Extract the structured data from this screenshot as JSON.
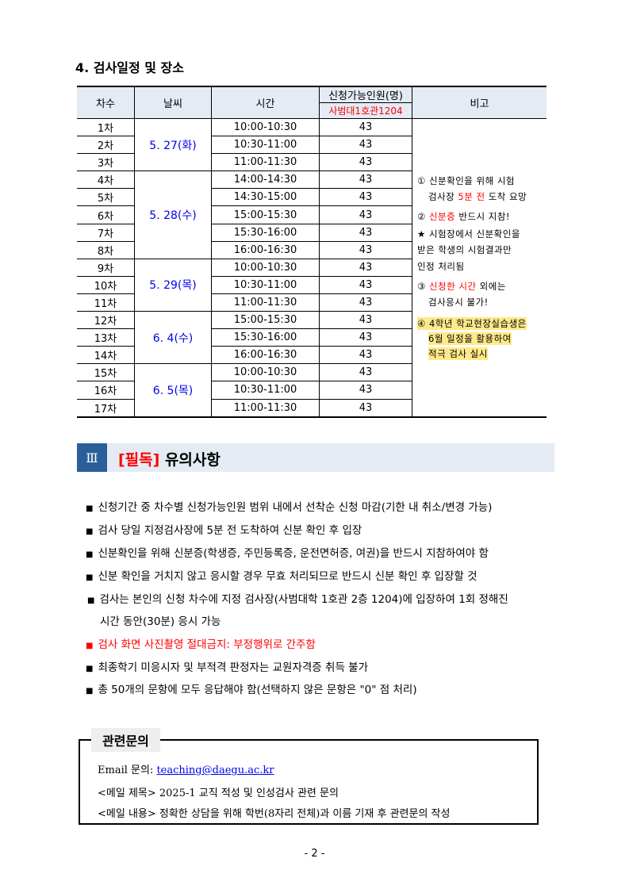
{
  "section4": {
    "title": "4. 검사일정 및 장소"
  },
  "table": {
    "headers": {
      "round": "차수",
      "date": "날씨",
      "time": "시간",
      "capacity": "신청가능인원(명)",
      "location": "사범대1호관1204",
      "remarks": "비고"
    },
    "groups": [
      {
        "date": "5. 27(화)",
        "rows": [
          [
            "1차",
            "10:00-10:30",
            "43"
          ],
          [
            "2차",
            "10:30-11:00",
            "43"
          ],
          [
            "3차",
            "11:00-11:30",
            "43"
          ]
        ]
      },
      {
        "date": "5. 28(수)",
        "rows": [
          [
            "4차",
            "14:00-14:30",
            "43"
          ],
          [
            "5차",
            "14:30-15:00",
            "43"
          ],
          [
            "6차",
            "15:00-15:30",
            "43"
          ],
          [
            "7차",
            "15:30-16:00",
            "43"
          ],
          [
            "8차",
            "16:00-16:30",
            "43"
          ]
        ]
      },
      {
        "date": "5. 29(목)",
        "rows": [
          [
            "9차",
            "10:00-10:30",
            "43"
          ],
          [
            "10차",
            "10:30-11:00",
            "43"
          ],
          [
            "11차",
            "11:00-11:30",
            "43"
          ]
        ]
      },
      {
        "date": "6. 4(수)",
        "rows": [
          [
            "12차",
            "15:00-15:30",
            "43"
          ],
          [
            "13차",
            "15:30-16:00",
            "43"
          ],
          [
            "14차",
            "16:00-16:30",
            "43"
          ]
        ]
      },
      {
        "date": "6. 5(목)",
        "rows": [
          [
            "15차",
            "10:00-10:30",
            "43"
          ],
          [
            "16차",
            "10:30-11:00",
            "43"
          ],
          [
            "17차",
            "11:00-11:30",
            "43"
          ]
        ]
      }
    ],
    "remarks": {
      "r1a": "① 신분확인을 위해 시험",
      "r1b_pre": "검사장 ",
      "r1b_red": "5분 전",
      "r1b_post": " 도착 요망",
      "r2a_pre": "② ",
      "r2a_red": "신분증",
      "r2a_post": " 반드시 지참!",
      "r2b": "★ 시험장에서 신분확인을",
      "r2c": "받은 학생의 시험결과만",
      "r2d": "인정 처리됨",
      "r3a_pre": "③ ",
      "r3a_red": "신청한 시간",
      "r3a_post": " 외에는",
      "r3b": "검사응시 불가!",
      "r4a": "④ 4학년 학교현장실습생은",
      "r4b": "6월 일정을 활용하여",
      "r4c": "적극 검사 실시"
    }
  },
  "section3": {
    "num": "Ⅲ",
    "tag": "[필독]",
    "title": " 유의사항"
  },
  "notices": [
    "신청기간 중 차수별 신청가능인원 범위 내에서 선착순 신청 마감(기한 내 취소/변경 가능)",
    "검사 당일 지정검사장에 5분 전 도착하여 신분 확인 후 입장",
    "신분확인을 위해 신분증(학생증, 주민등록증, 운전면허증, 여권)을 반드시 지참하여야 함",
    "신분 확인을 거치지 않고 응시할 경우 무효 처리되므로 반드시 신분 확인 후 입장할 것",
    "검사는 본인의 신청 차수에 지정 검사장(사범대학 1호관 2층 1204)에 입장하여 1회 정해진",
    "시간 동안(30분) 응시 가능",
    "검사 화면 사진촬영 절대금지: 부정행위로 간주함",
    "최종학기 미응시자 및 부적격 판정자는 교원자격증 취득 불가",
    "총 50개의 문항에 모두 응답해야 함(선택하지 않은 문항은 \"0\" 점 처리)"
  ],
  "contact": {
    "title": "관련문의",
    "email_label": "Email 문의: ",
    "email": "teaching@daegu.ac.kr",
    "subject": "<메일 제목> 2025-1 교직 적성 및 인성검사 관련 문의",
    "body": "<메일 내용> 정확한 상담을 위해 학번(8자리 전체)과 이름 기재 후 관련문의 작성"
  },
  "page_number": "- 2 -",
  "colors": {
    "accent_blue": "#2b5f9b",
    "header_bg": "#e4ebf5",
    "red": "#ff0000",
    "highlight": "#ffe98a",
    "date_blue": "#0000ee"
  }
}
